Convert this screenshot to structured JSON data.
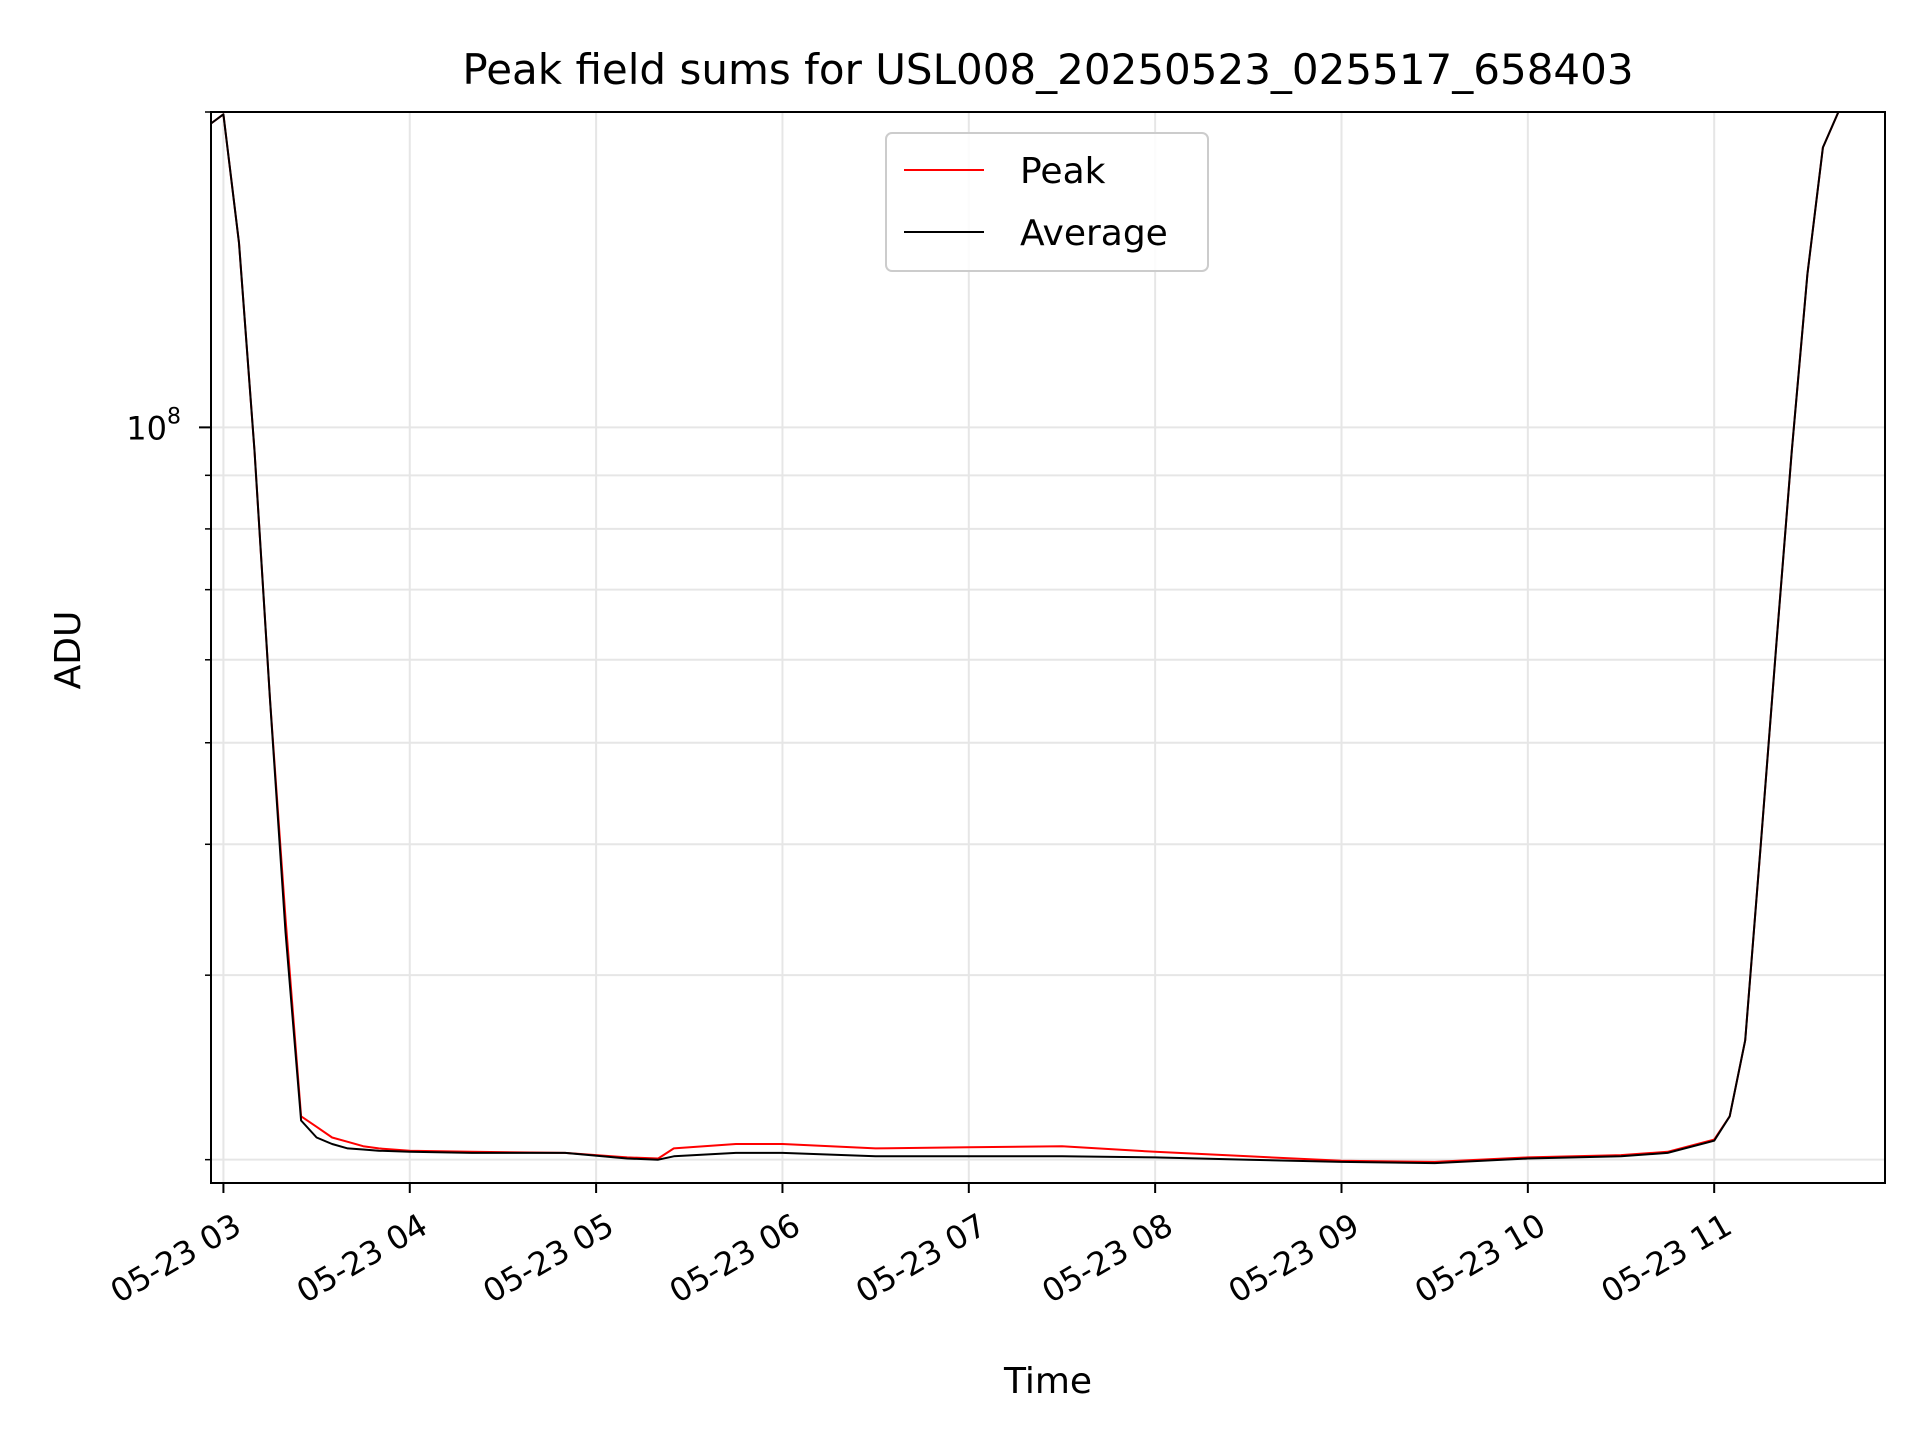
{
  "chart_data": {
    "type": "line",
    "title": "Peak field sums for USL008_20250523_025517_658403",
    "xlabel": "Time",
    "ylabel": "ADU",
    "y_scale": "log",
    "ylim": [
      19000000,
      200000000
    ],
    "xlim": [
      "2025-05-23 02:56",
      "2025-05-23 11:55"
    ],
    "x_tick_labels": [
      "05-23 03",
      "05-23 04",
      "05-23 05",
      "05-23 06",
      "05-23 07",
      "05-23 08",
      "05-23 09",
      "05-23 10",
      "05-23 11"
    ],
    "y_tick_labels": [
      {
        "base": "10",
        "exp": "8",
        "value": 100000000
      }
    ],
    "grid": true,
    "legend": {
      "placement": "top-center"
    },
    "series": [
      {
        "name": "Peak",
        "color": "#ff0000",
        "x": [
          "2025-05-23 02:55",
          "2025-05-23 03:00",
          "2025-05-23 03:05",
          "2025-05-23 03:10",
          "2025-05-23 03:15",
          "2025-05-23 03:20",
          "2025-05-23 03:25",
          "2025-05-23 03:30",
          "2025-05-23 03:35",
          "2025-05-23 03:40",
          "2025-05-23 03:45",
          "2025-05-23 03:50",
          "2025-05-23 04:00",
          "2025-05-23 04:20",
          "2025-05-23 04:50",
          "2025-05-23 05:10",
          "2025-05-23 05:20",
          "2025-05-23 05:25",
          "2025-05-23 05:45",
          "2025-05-23 06:00",
          "2025-05-23 06:30",
          "2025-05-23 07:00",
          "2025-05-23 07:30",
          "2025-05-23 08:00",
          "2025-05-23 08:30",
          "2025-05-23 09:00",
          "2025-05-23 09:30",
          "2025-05-23 10:00",
          "2025-05-23 10:30",
          "2025-05-23 10:45",
          "2025-05-23 11:00",
          "2025-05-23 11:05",
          "2025-05-23 11:10",
          "2025-05-23 11:15",
          "2025-05-23 11:20",
          "2025-05-23 11:25",
          "2025-05-23 11:30",
          "2025-05-23 11:35",
          "2025-05-23 11:40"
        ],
        "y": [
          195000000,
          199000000,
          150000000,
          95000000,
          55000000,
          34000000,
          22000000,
          21500000,
          21000000,
          20800000,
          20600000,
          20500000,
          20400000,
          20350000,
          20300000,
          20100000,
          20050000,
          20500000,
          20700000,
          20700000,
          20500000,
          20550000,
          20600000,
          20350000,
          20150000,
          19950000,
          19900000,
          20100000,
          20200000,
          20350000,
          20900000,
          22000000,
          26000000,
          40000000,
          62000000,
          95000000,
          140000000,
          185000000,
          200000000
        ]
      },
      {
        "name": "Average",
        "color": "#000000",
        "x": [
          "2025-05-23 02:55",
          "2025-05-23 03:00",
          "2025-05-23 03:05",
          "2025-05-23 03:10",
          "2025-05-23 03:15",
          "2025-05-23 03:20",
          "2025-05-23 03:25",
          "2025-05-23 03:30",
          "2025-05-23 03:35",
          "2025-05-23 03:40",
          "2025-05-23 03:45",
          "2025-05-23 03:50",
          "2025-05-23 04:00",
          "2025-05-23 04:20",
          "2025-05-23 04:50",
          "2025-05-23 05:10",
          "2025-05-23 05:20",
          "2025-05-23 05:25",
          "2025-05-23 05:45",
          "2025-05-23 06:00",
          "2025-05-23 06:30",
          "2025-05-23 07:00",
          "2025-05-23 07:30",
          "2025-05-23 08:00",
          "2025-05-23 08:30",
          "2025-05-23 09:00",
          "2025-05-23 09:30",
          "2025-05-23 10:00",
          "2025-05-23 10:30",
          "2025-05-23 10:45",
          "2025-05-23 11:00",
          "2025-05-23 11:05",
          "2025-05-23 11:10",
          "2025-05-23 11:15",
          "2025-05-23 11:20",
          "2025-05-23 11:25",
          "2025-05-23 11:30",
          "2025-05-23 11:35",
          "2025-05-23 11:40"
        ],
        "y": [
          195000000,
          199000000,
          150000000,
          95000000,
          55000000,
          33000000,
          21800000,
          21000000,
          20700000,
          20500000,
          20450000,
          20400000,
          20350000,
          20300000,
          20300000,
          20050000,
          20000000,
          20150000,
          20300000,
          20300000,
          20150000,
          20150000,
          20150000,
          20100000,
          20000000,
          19900000,
          19850000,
          20050000,
          20150000,
          20300000,
          20850000,
          22000000,
          26000000,
          40000000,
          62000000,
          95000000,
          140000000,
          185000000,
          200000000
        ]
      }
    ]
  }
}
